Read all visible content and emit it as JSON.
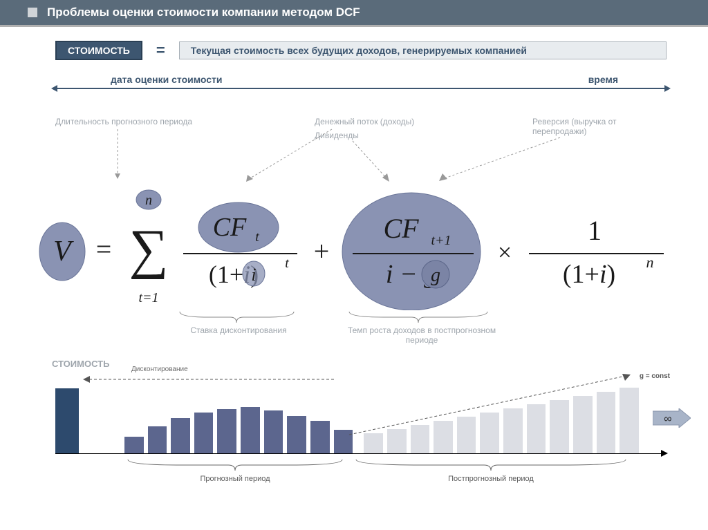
{
  "header": {
    "title": "Проблемы оценки стоимости компании методом DCF"
  },
  "definition": {
    "cost_label": "СТОИМОСТЬ",
    "equals": "=",
    "text": "Текущая стоимость всех будущих доходов, генерируемых компанией"
  },
  "timeline": {
    "left": "дата оценки стоимости",
    "right": "время"
  },
  "annotations_top": {
    "duration": "Длительность прогнозного периода",
    "cashflow": "Денежный поток (доходы)",
    "dividends": "Дивиденды",
    "reversion": "Реверсия (выручка от перепродажи)"
  },
  "formula": {
    "V": "V",
    "eq": "=",
    "sigma_upper": "n",
    "sigma_lower": "t=1",
    "CFt": "CF",
    "CFt_sub": "t",
    "one_plus_i": "(1+i)",
    "exp_t": "t",
    "plus": "+",
    "CFt1": "CF",
    "CFt1_sub": "t+1",
    "i_minus_g": "i − g",
    "times": "×",
    "one": "1",
    "exp_n": "n",
    "colors": {
      "bubble_fill": "#8a93b3",
      "bubble_fill_light": "#9aa2bf",
      "bubble_stroke": "#6a7598",
      "text": "#2a2a2a",
      "dashed": "#888"
    }
  },
  "annotations_bottom": {
    "discount_rate": "Ставка дисконтирования",
    "growth_rate": "Темп роста доходов в постпрогнозном периоде"
  },
  "chart": {
    "side_label": "СТОИМОСТЬ",
    "disc_label": "Дисконтирование",
    "g_const": "g = const",
    "infinity": "∞",
    "forecast_label": "Прогнозный период",
    "post_forecast_label": "Постпрогнозный период",
    "colors": {
      "value_bar": "#2d4a6d",
      "forecast_bar": "#5c668e",
      "post_bar": "#dcdee4",
      "arrow_fill": "#a8b4c8"
    },
    "value_bar_height": 95,
    "forecast_bars": [
      25,
      40,
      52,
      60,
      65,
      68,
      63,
      55,
      48,
      35
    ],
    "post_bars": [
      30,
      36,
      42,
      48,
      54,
      60,
      66,
      72,
      78,
      84,
      90,
      96
    ]
  }
}
